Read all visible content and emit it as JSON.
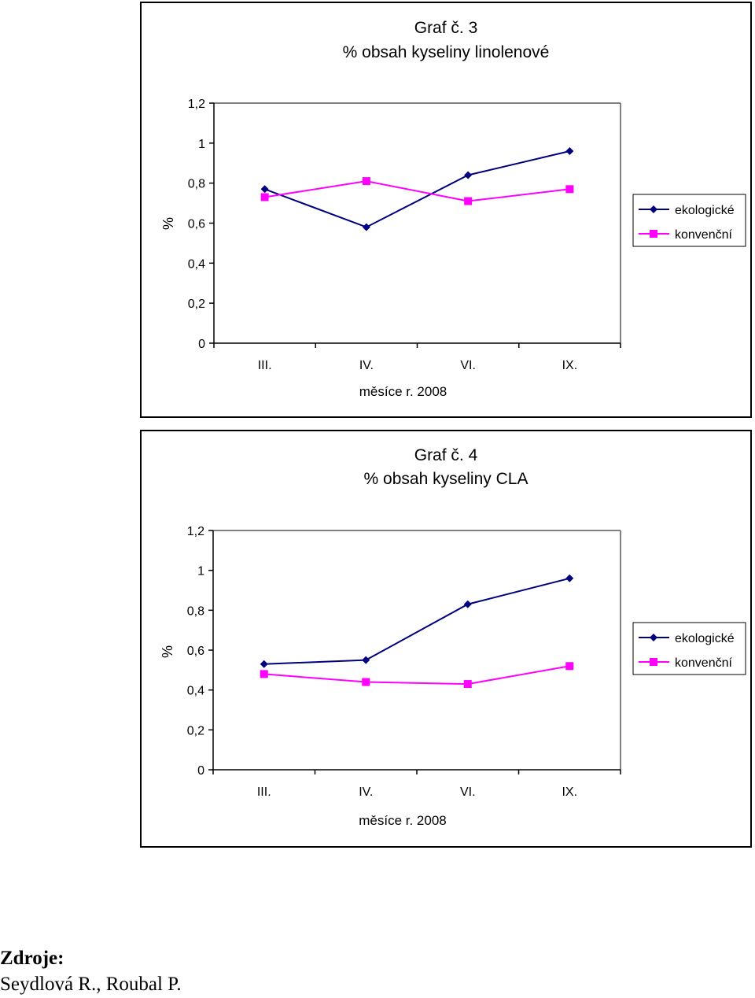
{
  "chart_data": [
    {
      "type": "line",
      "title_line1": "Graf č. 3",
      "title_line2": "% obsah kyseliny linolenové",
      "xlabel": "měsíce r. 2008",
      "ylabel": "%",
      "categories": [
        "III.",
        "IV.",
        "VI.",
        "IX."
      ],
      "yticks": [
        "1,2",
        "1",
        "0,8",
        "0,6",
        "0,4",
        "0,2",
        "0"
      ],
      "ylim": [
        0,
        1.2
      ],
      "grid": false,
      "legend_position": "right",
      "series": [
        {
          "name": "ekologické",
          "values": [
            0.77,
            0.58,
            0.84,
            0.96
          ],
          "color": "#000080",
          "marker": "diamond"
        },
        {
          "name": "konvenční",
          "values": [
            0.73,
            0.81,
            0.71,
            0.77
          ],
          "color": "#ff00ff",
          "marker": "square"
        }
      ]
    },
    {
      "type": "line",
      "title_line1": "Graf č. 4",
      "title_line2": "% obsah kyseliny CLA",
      "xlabel": "měsíce r. 2008",
      "ylabel": "%",
      "categories": [
        "III.",
        "IV.",
        "VI.",
        "IX."
      ],
      "yticks": [
        "1,2",
        "1",
        "0,8",
        "0,6",
        "0,4",
        "0,2",
        "0"
      ],
      "ylim": [
        0,
        1.2
      ],
      "grid": false,
      "legend_position": "right",
      "series": [
        {
          "name": "ekologické",
          "values": [
            0.53,
            0.55,
            0.83,
            0.96
          ],
          "color": "#000080",
          "marker": "diamond"
        },
        {
          "name": "konvenční",
          "values": [
            0.48,
            0.44,
            0.43,
            0.52
          ],
          "color": "#ff00ff",
          "marker": "square"
        }
      ]
    }
  ],
  "sources": {
    "heading": "Zdroje:",
    "authors": "Seydlová R., Roubal P."
  }
}
